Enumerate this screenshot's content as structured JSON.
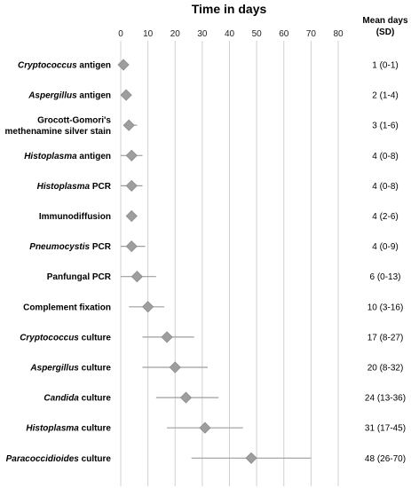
{
  "chart_data": {
    "type": "scatter",
    "title": "Time in days",
    "xlim": [
      0,
      80
    ],
    "xticks": [
      "0",
      "10",
      "20",
      "30",
      "40",
      "50",
      "60",
      "70",
      "80"
    ],
    "grid": true,
    "error_bars": "SD",
    "mean_header_line1": "Mean days",
    "mean_header_line2": "(SD)",
    "rows": [
      {
        "label": [
          {
            "t": "Cryptococcus",
            "i": true
          },
          {
            "t": " antigen",
            "i": false
          }
        ],
        "label_text": "Cryptococcus antigen",
        "mean": 1,
        "low": 0,
        "high": 1,
        "mean_text": "1 (0-1)"
      },
      {
        "label": [
          {
            "t": "Aspergillus",
            "i": true
          },
          {
            "t": " antigen",
            "i": false
          }
        ],
        "label_text": "Aspergillus antigen",
        "mean": 2,
        "low": 1,
        "high": 4,
        "mean_text": "2 (1-4)"
      },
      {
        "label": [
          {
            "t": "Grocott-Gomori's",
            "i": false
          }
        ],
        "label2": [
          {
            "t": "methenamine silver stain",
            "i": false
          }
        ],
        "label_text": "Grocott-Gomori's methenamine silver stain",
        "mean": 3,
        "low": 1,
        "high": 6,
        "mean_text": "3 (1-6)"
      },
      {
        "label": [
          {
            "t": "Histoplasma",
            "i": true
          },
          {
            "t": " antigen",
            "i": false
          }
        ],
        "label_text": "Histoplasma antigen",
        "mean": 4,
        "low": 0,
        "high": 8,
        "mean_text": "4 (0-8)"
      },
      {
        "label": [
          {
            "t": "Histoplasma",
            "i": true
          },
          {
            "t": " PCR",
            "i": false
          }
        ],
        "label_text": "Histoplasma PCR",
        "mean": 4,
        "low": 0,
        "high": 8,
        "mean_text": "4 (0-8)"
      },
      {
        "label": [
          {
            "t": "Immunodiffusion",
            "i": false
          }
        ],
        "label_text": "Immunodiffusion",
        "mean": 4,
        "low": 2,
        "high": 6,
        "mean_text": "4 (2-6)"
      },
      {
        "label": [
          {
            "t": "Pneumocystis",
            "i": true
          },
          {
            "t": " PCR",
            "i": false
          }
        ],
        "label_text": "Pneumocystis PCR",
        "mean": 4,
        "low": 0,
        "high": 9,
        "mean_text": "4 (0-9)"
      },
      {
        "label": [
          {
            "t": "Panfungal PCR",
            "i": false
          }
        ],
        "label_text": "Panfungal PCR",
        "mean": 6,
        "low": 0,
        "high": 13,
        "mean_text": "6 (0-13)"
      },
      {
        "label": [
          {
            "t": "Complement fixation",
            "i": false
          }
        ],
        "label_text": "Complement fixation",
        "mean": 10,
        "low": 3,
        "high": 16,
        "mean_text": "10 (3-16)"
      },
      {
        "label": [
          {
            "t": "Cryptococcus",
            "i": true
          },
          {
            "t": " culture",
            "i": false
          }
        ],
        "label_text": "Cryptococcus culture",
        "mean": 17,
        "low": 8,
        "high": 27,
        "mean_text": "17 (8-27)"
      },
      {
        "label": [
          {
            "t": "Aspergillus",
            "i": true
          },
          {
            "t": " culture",
            "i": false
          }
        ],
        "label_text": "Aspergillus culture",
        "mean": 20,
        "low": 8,
        "high": 32,
        "mean_text": "20 (8-32)"
      },
      {
        "label": [
          {
            "t": "Candida",
            "i": true
          },
          {
            "t": " culture",
            "i": false
          }
        ],
        "label_text": "Candida culture",
        "mean": 24,
        "low": 13,
        "high": 36,
        "mean_text": "24 (13-36)"
      },
      {
        "label": [
          {
            "t": "Histoplasma",
            "i": true
          },
          {
            "t": " culture",
            "i": false
          }
        ],
        "label_text": "Histoplasma culture",
        "mean": 31,
        "low": 17,
        "high": 45,
        "mean_text": "31 (17-45)"
      },
      {
        "label": [
          {
            "t": "Paracoccidioides",
            "i": true
          },
          {
            "t": " culture",
            "i": false
          }
        ],
        "label_text": "Paracoccidioides culture",
        "mean": 48,
        "low": 26,
        "high": 70,
        "mean_text": "48 (26-70)"
      }
    ],
    "colors": {
      "marker": "#9e9e9e",
      "marker_stroke": "#8a8a8a",
      "error_bar": "#9e9e9e",
      "grid": "#d0d0d0"
    }
  }
}
